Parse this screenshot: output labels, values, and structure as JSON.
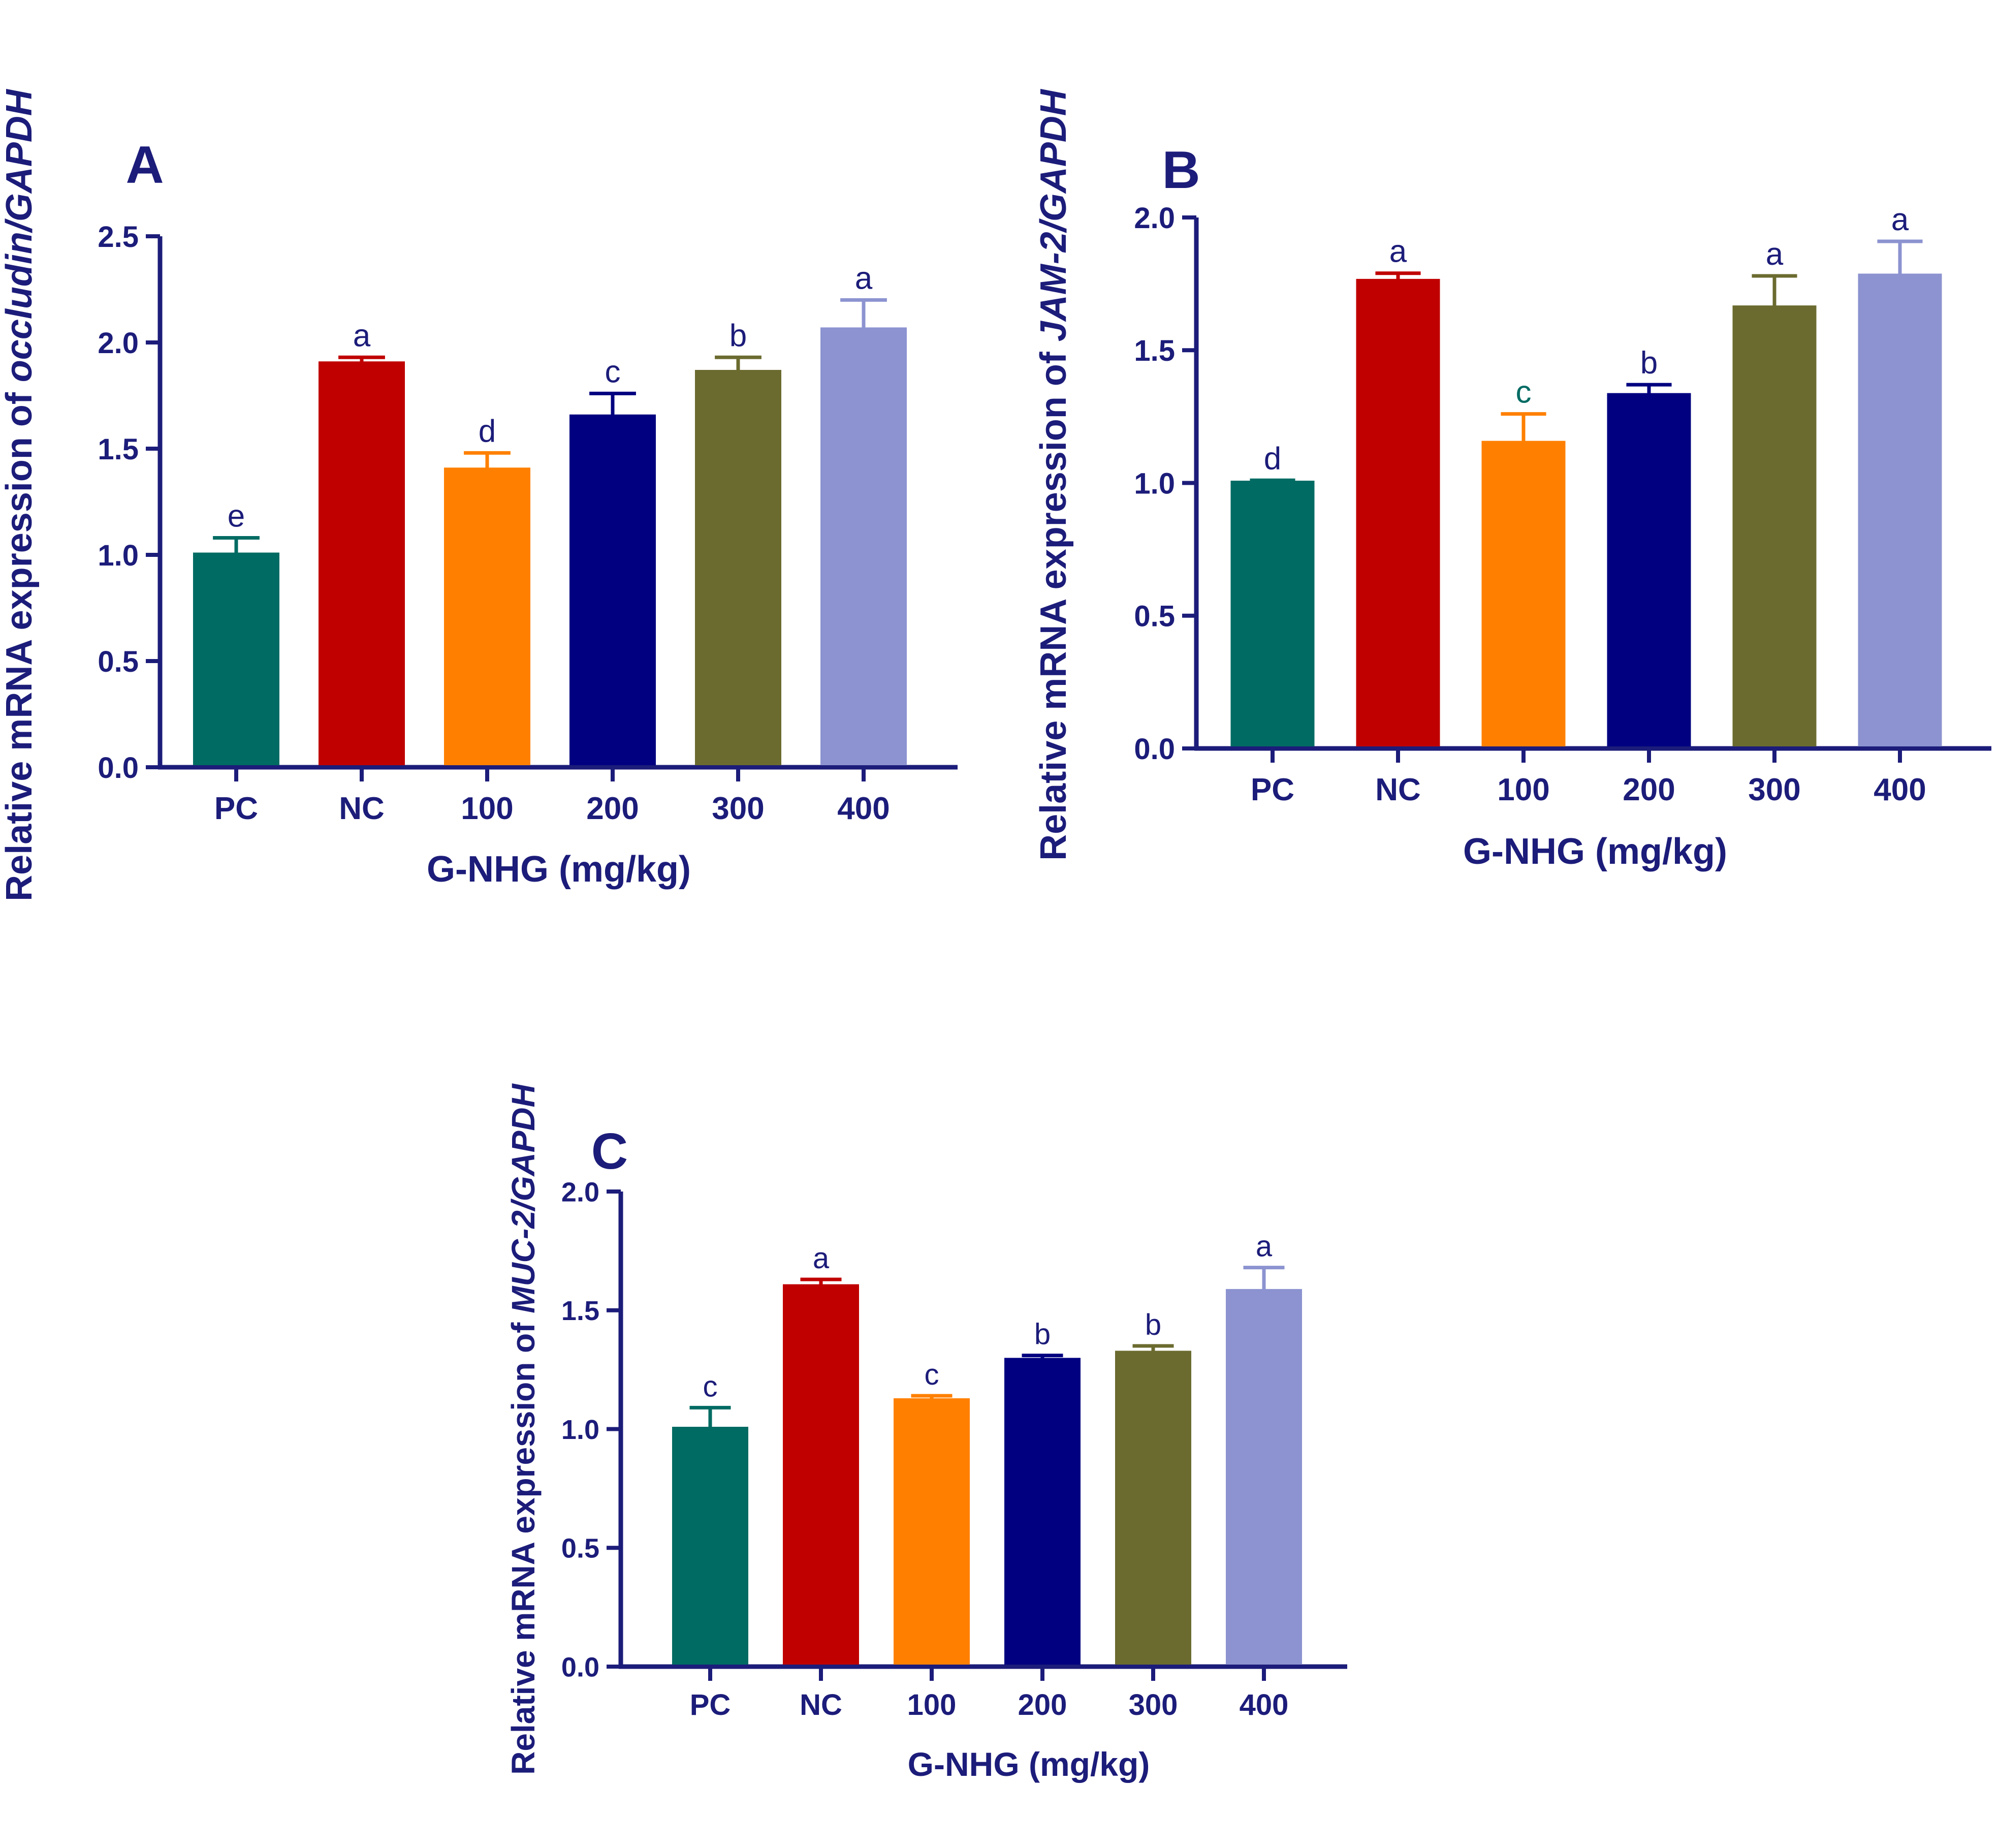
{
  "colors": {
    "axis": "#1c1c7a",
    "bars": [
      "#006b63",
      "#c00000",
      "#ff8000",
      "#000080",
      "#6b6b30",
      "#8c93d0"
    ]
  },
  "chart_data": [
    {
      "panel": "A",
      "type": "bar",
      "categories": [
        "PC",
        "NC",
        "100",
        "200",
        "300",
        "400"
      ],
      "values": [
        1.0,
        1.9,
        1.4,
        1.65,
        1.86,
        2.06
      ],
      "errors": [
        0.08,
        0.03,
        0.08,
        0.11,
        0.07,
        0.14
      ],
      "sig_letters": [
        "e",
        "a",
        "d",
        "c",
        "b",
        "a"
      ],
      "xlabel": "G-NHG (mg/kg)",
      "ylabel_prefix": "Relative mRNA expression of ",
      "ylabel_gene": "occludin",
      "ylabel_suffix": "/GAPDH",
      "ylim": [
        0,
        2.5
      ],
      "yticks": [
        "0.0",
        "0.5",
        "1.0",
        "1.5",
        "2.0",
        "2.5"
      ]
    },
    {
      "panel": "B",
      "type": "bar",
      "categories": [
        "PC",
        "NC",
        "100",
        "200",
        "300",
        "400"
      ],
      "values": [
        1.0,
        1.76,
        1.15,
        1.33,
        1.66,
        1.78
      ],
      "errors": [
        0.01,
        0.03,
        0.11,
        0.04,
        0.12,
        0.13
      ],
      "sig_letters": [
        "d",
        "a",
        "c",
        "b",
        "a",
        "a"
      ],
      "xlabel": "G-NHG (mg/kg)",
      "ylabel_prefix": "Relative mRNA expression of ",
      "ylabel_gene": "JAM-2",
      "ylabel_suffix": "/GAPDH",
      "ylim": [
        0,
        2.0
      ],
      "yticks": [
        "0.0",
        "0.5",
        "1.0",
        "1.5",
        "2.0"
      ]
    },
    {
      "panel": "C",
      "type": "bar",
      "categories": [
        "PC",
        "NC",
        "100",
        "200",
        "300",
        "400"
      ],
      "values": [
        1.0,
        1.6,
        1.12,
        1.29,
        1.32,
        1.58
      ],
      "errors": [
        0.09,
        0.03,
        0.02,
        0.02,
        0.03,
        0.1
      ],
      "sig_letters": [
        "c",
        "a",
        "c",
        "b",
        "b",
        "a"
      ],
      "xlabel": "G-NHG (mg/kg)",
      "ylabel_prefix": "Relative mRNA expression of ",
      "ylabel_gene": "MUC-2",
      "ylabel_suffix": "/GAPDH",
      "ylim": [
        0,
        2.0
      ],
      "yticks": [
        "0.0",
        "0.5",
        "1.0",
        "1.5",
        "2.0"
      ]
    }
  ]
}
